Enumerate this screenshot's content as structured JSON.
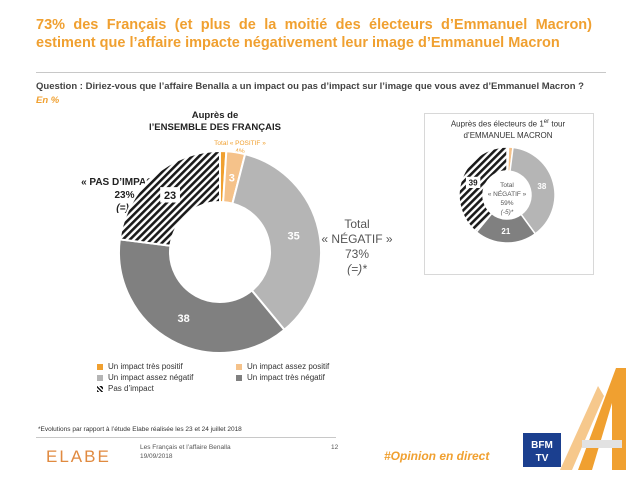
{
  "header": {
    "title": "73% des Français (et plus de la moitié des électeurs d’Emmanuel Macron) estiment que l’affaire impacte négativement leur image d’Emmanuel Macron",
    "question": "Question : Diriez-vous que l’affaire Benalla a un impact ou pas d’impact sur l’image que vous avez d’Emmanuel Macron ?",
    "unit_note": "En %"
  },
  "main_chart": {
    "heading_line1": "Auprès de",
    "heading_line2": "l’ENSEMBLE DES FRANÇAIS",
    "positive_note_line1": "Total « POSITIF »",
    "positive_note_line2": "4%",
    "positive_note_line3": "(=)*",
    "no_impact_line1": "« PAS D’IMPACT »",
    "no_impact_line2": "23%",
    "no_impact_line3": "(=)*",
    "negative_line1": "Total",
    "negative_line2": "« NÉGATIF »",
    "negative_line3": "73%",
    "negative_line4": "(=)*"
  },
  "right_chart": {
    "heading_line1_pre": "Auprès des électeurs de 1",
    "heading_sup": "er",
    "heading_line1_post": " tour",
    "heading_line2": "d’EMMANUEL MACRON",
    "center_line1": "Total",
    "center_line2": "« NÉGATIF »",
    "center_line3": "59%",
    "center_line4": "(-5)*"
  },
  "legend": {
    "very_positive": "Un impact très positif",
    "fairly_positive": "Un impact assez positif",
    "fairly_negative": "Un impact assez négatif",
    "very_negative": "Un impact très négatif",
    "no_impact": "Pas d’impact"
  },
  "footer": {
    "footnote": "*Evolutions par rapport à l’étude Elabe réalisée les 23 et 24 juillet 2018",
    "brand": "ELABE",
    "study_title": "Les Français et l’affaire Benalla",
    "study_date": "19/09/2018",
    "page": "12",
    "hashtag": "#Opinion en direct",
    "tv_logo": "BFM TV"
  },
  "colors": {
    "accent": "#f0a030",
    "very_positive": "#f0a030",
    "fairly_positive": "#f5c28a",
    "fairly_negative": "#b5b5b5",
    "very_negative": "#808080",
    "no_impact": "#1a1a1a"
  },
  "chart_data": [
    {
      "type": "pie",
      "title": "Auprès de l’ENSEMBLE DES FRANÇAIS",
      "categories": [
        "Un impact très positif",
        "Un impact assez positif",
        "Un impact assez négatif",
        "Un impact très négatif",
        "Pas d’impact"
      ],
      "values": [
        1,
        3,
        35,
        38,
        23
      ],
      "labels": [
        "",
        "3",
        "35",
        "38",
        "23"
      ]
    },
    {
      "type": "pie",
      "title": "Auprès des électeurs de 1er tour d’EMMANUEL MACRON",
      "categories": [
        "Un impact très positif",
        "Un impact assez positif",
        "Un impact assez négatif",
        "Un impact très négatif",
        "Pas d’impact"
      ],
      "values": [
        0.5,
        1.5,
        38,
        21,
        39
      ],
      "labels": [
        "",
        "",
        "38",
        "21",
        "39"
      ]
    }
  ]
}
